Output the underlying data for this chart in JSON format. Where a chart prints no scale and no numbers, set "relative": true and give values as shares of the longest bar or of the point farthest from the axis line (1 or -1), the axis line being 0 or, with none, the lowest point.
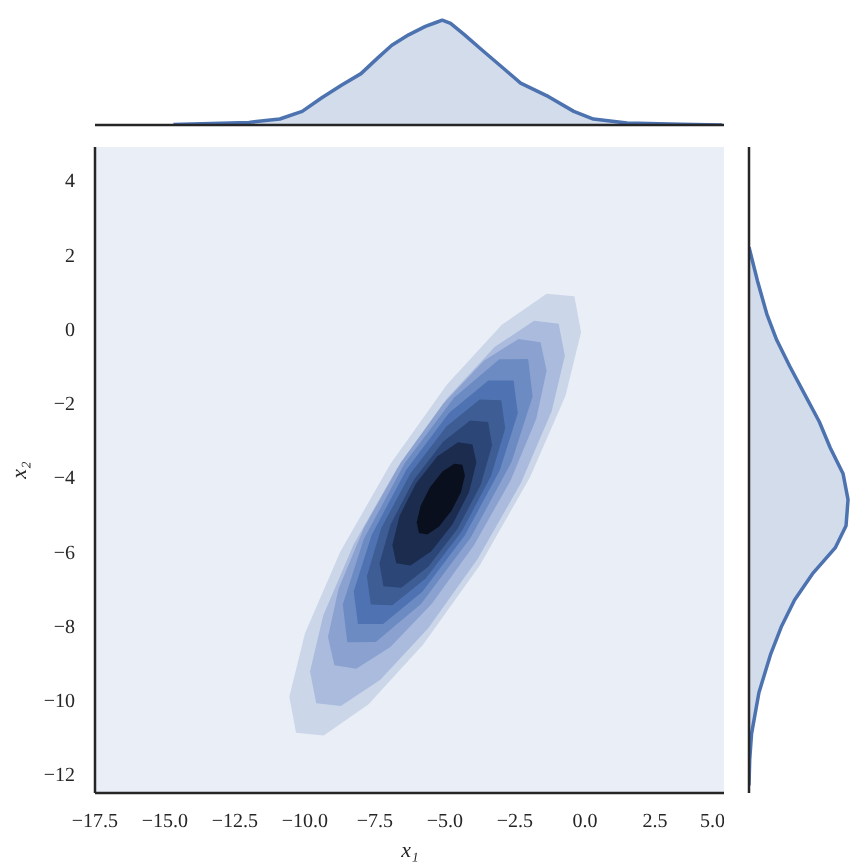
{
  "chart_data": [
    {
      "type": "area",
      "relative": true,
      "xlim": [
        -17.5,
        5
      ],
      "color": "#4c72b0",
      "x": [
        -14.7,
        -12.0,
        -10.9,
        -10.1,
        -9.4,
        -8.7,
        -8.0,
        -7.4,
        -6.9,
        -6.3,
        -5.7,
        -5.3,
        -5.1,
        -4.8,
        -4.3,
        -3.7,
        -3.0,
        -2.3,
        -1.3,
        -0.4,
        0.3,
        1.5,
        3.4,
        4.9
      ],
      "values": [
        0.005,
        0.025,
        0.057,
        0.13,
        0.26,
        0.38,
        0.49,
        0.64,
        0.76,
        0.86,
        0.94,
        0.98,
        1.0,
        0.97,
        0.86,
        0.72,
        0.56,
        0.4,
        0.27,
        0.13,
        0.057,
        0.019,
        0.006,
        0.0
      ]
    },
    {
      "type": "area",
      "xlabel": "x₁",
      "ylabel": "x₂",
      "xlim": [
        -17.5,
        5
      ],
      "ylim": [
        -12.5,
        4.9
      ],
      "xticks": [
        {
          "value": -17.5,
          "label": "−17.5"
        },
        {
          "value": -15,
          "label": "−15.0"
        },
        {
          "value": -12.5,
          "label": "−12.5"
        },
        {
          "value": -10,
          "label": "−10.0"
        },
        {
          "value": -7.5,
          "label": "−7.5"
        },
        {
          "value": -5,
          "label": "−5.0"
        },
        {
          "value": -2.5,
          "label": "−2.5"
        },
        {
          "value": 0,
          "label": "0.0"
        },
        {
          "value": 2.5,
          "label": "2.5"
        },
        {
          "value": 5,
          "label": "5.0"
        }
      ],
      "yticks": [
        {
          "value": -12,
          "label": "−12"
        },
        {
          "value": -10,
          "label": "−10"
        },
        {
          "value": -8,
          "label": "−8"
        },
        {
          "value": -6,
          "label": "−6"
        },
        {
          "value": -4,
          "label": "−4"
        },
        {
          "value": -2,
          "label": "−2"
        },
        0,
        2,
        4
      ],
      "series": [
        {
          "color": "#ccd6e9",
          "x": [
            -0.38,
            -0.14,
            -0.7,
            -1.97,
            -3.75,
            -5.78,
            -7.73,
            -9.33,
            -10.32,
            -10.56,
            -10.0,
            -8.74,
            -6.95,
            -4.93,
            -2.97,
            -1.37
          ],
          "values": [
            0.88,
            -0.09,
            -1.81,
            -4.0,
            -6.36,
            -8.5,
            -10.11,
            -10.95,
            -10.88,
            -9.91,
            -8.2,
            -6.0,
            -3.64,
            -1.5,
            0.11,
            0.95
          ]
        },
        {
          "color": "#aabbde",
          "x": [
            -0.94,
            -0.72,
            -1.19,
            -2.28,
            -3.83,
            -5.6,
            -7.31,
            -8.72,
            -9.6,
            -9.82,
            -9.35,
            -8.26,
            -6.71,
            -4.94,
            -3.23,
            -1.82
          ],
          "values": [
            0.14,
            -0.72,
            -2.22,
            -4.14,
            -6.19,
            -8.06,
            -9.45,
            -10.16,
            -10.08,
            -9.23,
            -7.72,
            -5.8,
            -3.75,
            -1.88,
            -0.49,
            0.22
          ]
        },
        {
          "color": "#8ba2d0",
          "x": [
            -1.59,
            -1.37,
            -1.74,
            -2.65,
            -3.96,
            -5.47,
            -6.95,
            -8.17,
            -8.95,
            -9.18,
            -8.8,
            -7.89,
            -6.58,
            -5.07,
            -3.6,
            -2.37
          ],
          "values": [
            -0.36,
            -1.12,
            -2.42,
            -4.07,
            -5.82,
            -7.4,
            -8.57,
            -9.15,
            -9.06,
            -8.3,
            -7.0,
            -5.35,
            -3.6,
            -2.02,
            -0.85,
            -0.27
          ]
        },
        {
          "color": "#6c8bc3",
          "x": [
            -2.03,
            -1.87,
            -2.62,
            -4.08,
            -5.85,
            -7.47,
            -8.49,
            -8.65,
            -7.9,
            -6.44,
            -4.67,
            -3.06
          ],
          "values": [
            -0.81,
            -1.82,
            -3.58,
            -5.62,
            -7.4,
            -8.43,
            -8.44,
            -7.42,
            -5.66,
            -3.62,
            -1.85,
            -0.82
          ]
        },
        {
          "color": "#4f73b2",
          "x": [
            -2.55,
            -2.4,
            -3.04,
            -4.29,
            -5.81,
            -7.21,
            -8.11,
            -8.26,
            -7.62,
            -6.38,
            -4.85,
            -3.45
          ],
          "values": [
            -1.39,
            -2.27,
            -3.8,
            -5.56,
            -7.08,
            -7.95,
            -7.95,
            -7.07,
            -5.55,
            -3.79,
            -2.26,
            -1.39
          ]
        },
        {
          "color": "#3d5d94",
          "x": [
            -2.99,
            -2.85,
            -3.36,
            -4.4,
            -5.69,
            -6.88,
            -7.65,
            -7.79,
            -7.28,
            -6.24,
            -4.95,
            -3.76
          ],
          "values": [
            -1.92,
            -2.68,
            -3.97,
            -5.45,
            -6.72,
            -7.44,
            -7.42,
            -6.66,
            -5.37,
            -3.9,
            -2.63,
            -1.9
          ]
        },
        {
          "color": "#2c4677",
          "x": [
            -3.46,
            -3.32,
            -3.72,
            -4.55,
            -5.59,
            -6.56,
            -7.2,
            -7.34,
            -6.94,
            -6.11,
            -5.07,
            -4.1
          ],
          "values": [
            -2.51,
            -3.13,
            -4.19,
            -5.38,
            -6.4,
            -6.97,
            -6.93,
            -6.31,
            -5.26,
            -4.06,
            -3.04,
            -2.47
          ]
        },
        {
          "color": "#1b2c4e",
          "x": [
            -4.02,
            -3.88,
            -4.14,
            -4.73,
            -5.49,
            -6.23,
            -6.74,
            -6.88,
            -6.62,
            -6.03,
            -5.27,
            -4.53
          ],
          "values": [
            -3.11,
            -3.6,
            -4.39,
            -5.26,
            -5.99,
            -6.37,
            -6.31,
            -5.82,
            -5.03,
            -4.16,
            -3.43,
            -3.05
          ]
        },
        {
          "color": "#0a0f1e",
          "x": [
            -4.38,
            -4.29,
            -4.43,
            -4.77,
            -5.21,
            -5.63,
            -5.93,
            -6.01,
            -5.87,
            -5.53,
            -5.09,
            -4.67
          ],
          "values": [
            -3.66,
            -3.95,
            -4.4,
            -4.9,
            -5.32,
            -5.54,
            -5.5,
            -5.21,
            -4.76,
            -4.26,
            -3.84,
            -3.63
          ]
        }
      ]
    },
    {
      "type": "area",
      "relative": true,
      "orientation": "horizontal",
      "ylim": [
        -12.5,
        4.9
      ],
      "color": "#4c72b0",
      "x": [
        2.2,
        1.3,
        0.4,
        -0.3,
        -1.0,
        -1.75,
        -2.5,
        -3.2,
        -3.9,
        -4.6,
        -5.3,
        -5.9,
        -6.6,
        -7.3,
        -8.0,
        -8.75,
        -9.8,
        -10.9,
        -11.6,
        -12.3
      ],
      "values": [
        0.0,
        0.085,
        0.18,
        0.28,
        0.41,
        0.56,
        0.71,
        0.82,
        0.95,
        1.0,
        0.98,
        0.87,
        0.64,
        0.46,
        0.33,
        0.22,
        0.1,
        0.026,
        0.007,
        0.0
      ]
    }
  ]
}
